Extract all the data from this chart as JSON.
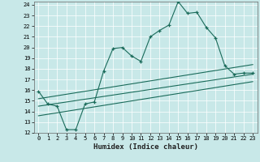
{
  "xlabel": "Humidex (Indice chaleur)",
  "bg_color": "#c8e8e8",
  "line_color": "#1a6b5a",
  "grid_color": "#b0d4d4",
  "xlim": [
    -0.5,
    23.5
  ],
  "ylim": [
    12,
    24.3
  ],
  "xticks": [
    0,
    1,
    2,
    3,
    4,
    5,
    6,
    7,
    8,
    9,
    10,
    11,
    12,
    13,
    14,
    15,
    16,
    17,
    18,
    19,
    20,
    21,
    22,
    23
  ],
  "yticks": [
    12,
    13,
    14,
    15,
    16,
    17,
    18,
    19,
    20,
    21,
    22,
    23,
    24
  ],
  "line1_x": [
    0,
    1,
    2,
    3,
    4,
    5,
    6,
    7,
    8,
    9,
    10,
    11,
    12,
    13,
    14,
    15,
    16,
    17,
    18,
    19,
    20,
    21,
    22,
    23
  ],
  "line1_y": [
    15.9,
    14.7,
    14.5,
    12.3,
    12.3,
    14.7,
    14.9,
    17.8,
    19.9,
    20.0,
    19.2,
    18.7,
    21.0,
    21.6,
    22.1,
    24.3,
    23.2,
    23.3,
    21.9,
    20.9,
    18.3,
    17.5,
    17.6,
    17.6
  ],
  "line2_x": [
    0,
    23
  ],
  "line2_y": [
    15.2,
    18.4
  ],
  "line3_x": [
    0,
    23
  ],
  "line3_y": [
    14.5,
    17.5
  ],
  "line4_x": [
    0,
    23
  ],
  "line4_y": [
    13.6,
    16.8
  ],
  "xlabel_fontsize": 6.5,
  "tick_fontsize": 5.0
}
